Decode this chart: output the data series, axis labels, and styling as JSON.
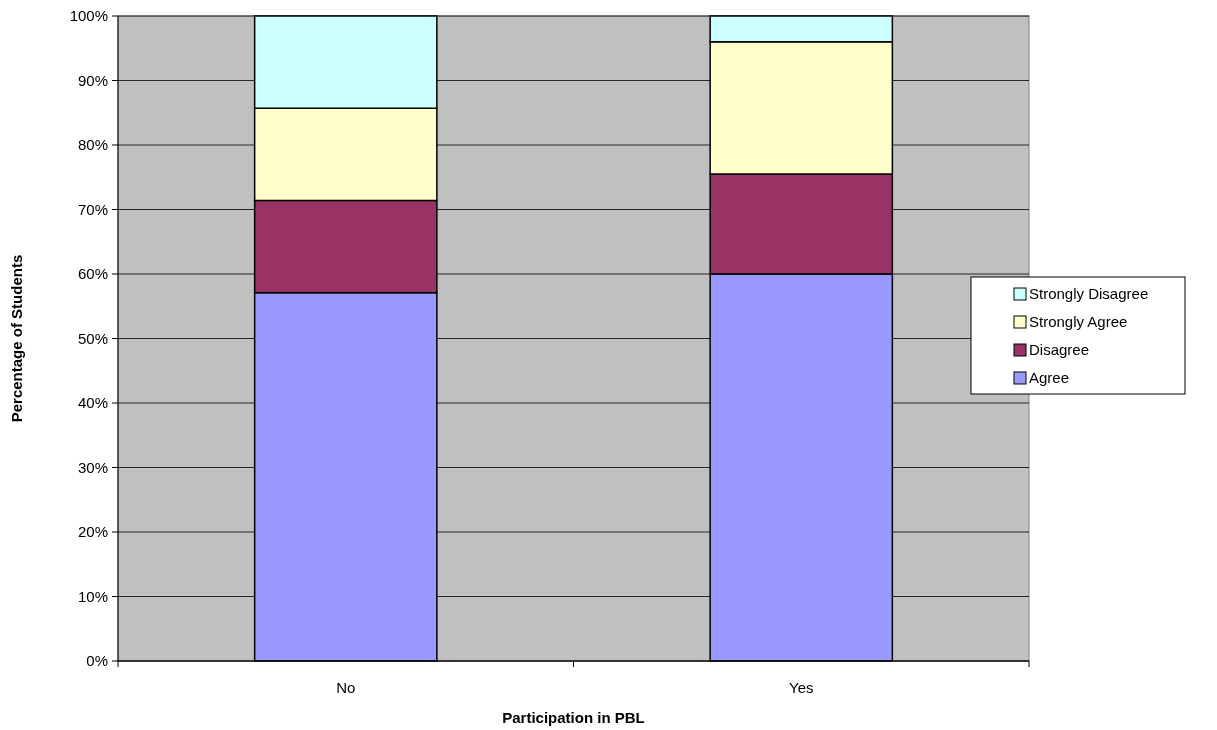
{
  "chart_data": {
    "type": "bar",
    "stacked": true,
    "xlabel": "Participation in PBL",
    "ylabel": "Percentage of Students",
    "categories": [
      "No",
      "Yes"
    ],
    "series": [
      {
        "name": "Agree",
        "color": "#9999ff",
        "values": [
          57.1,
          60
        ]
      },
      {
        "name": "Disagree",
        "color": "#993366",
        "values": [
          14.3,
          15.5
        ]
      },
      {
        "name": "Strongly Agree",
        "color": "#ffffcc",
        "values": [
          14.3,
          20.5
        ]
      },
      {
        "name": "Strongly Disagree",
        "color": "#ccffff",
        "values": [
          14.3,
          4
        ]
      }
    ],
    "ylim": [
      0,
      100
    ],
    "yticks": [
      {
        "value": 0,
        "label": "0%"
      },
      {
        "value": 10,
        "label": "10%"
      },
      {
        "value": 20,
        "label": "20%"
      },
      {
        "value": 30,
        "label": "30%"
      },
      {
        "value": 40,
        "label": "40%"
      },
      {
        "value": 50,
        "label": "50%"
      },
      {
        "value": 60,
        "label": "60%"
      },
      {
        "value": 70,
        "label": "70%"
      },
      {
        "value": 80,
        "label": "80%"
      },
      {
        "value": 90,
        "label": "90%"
      },
      {
        "value": 100,
        "label": "100%"
      }
    ],
    "grid": "y",
    "legend": "right"
  }
}
